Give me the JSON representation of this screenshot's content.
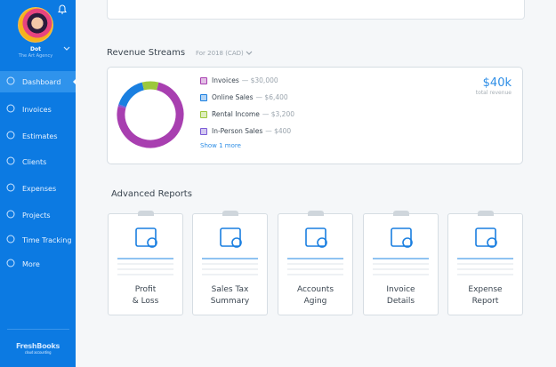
{
  "user": {
    "name": "Dot",
    "org": "The Art Agency"
  },
  "nav": [
    {
      "label": "Dashboard",
      "icon": "sun-icon",
      "active": true
    },
    {
      "label": "Invoices",
      "icon": "invoice-icon"
    },
    {
      "label": "Estimates",
      "icon": "cloud-icon"
    },
    {
      "label": "Clients",
      "icon": "laptop-icon"
    },
    {
      "label": "Expenses",
      "icon": "pizza-icon"
    },
    {
      "label": "Projects",
      "icon": "flask-icon"
    },
    {
      "label": "Time Tracking",
      "icon": "stopwatch-icon"
    },
    {
      "label": "More",
      "icon": "dots-icon"
    }
  ],
  "logo": {
    "name": "FreshBooks",
    "tagline": "cloud accounting"
  },
  "revenue": {
    "title": "Revenue Streams",
    "period": "For 2018 (CAD)",
    "total": "$40k",
    "total_label": "total revenue",
    "show_more": "Show 1 more",
    "streams": [
      {
        "label": "Invoices",
        "amount": "— $30,000",
        "value": 30000,
        "color": "#a83fb0"
      },
      {
        "label": "Online Sales",
        "amount": "— $6,400",
        "value": 6400,
        "color": "#1a7fe0"
      },
      {
        "label": "Rental Income",
        "amount": "— $3,200",
        "value": 3200,
        "color": "#9cc83c"
      },
      {
        "label": "In-Person Sales",
        "amount": "— $400",
        "value": 400,
        "color": "#7b5bd6"
      }
    ]
  },
  "reports": {
    "title": "Advanced Reports",
    "items": [
      {
        "label": "Profit\n& Loss",
        "icon": "profit-loss-icon"
      },
      {
        "label": "Sales Tax\nSummary",
        "icon": "bank-icon"
      },
      {
        "label": "Accounts\nAging",
        "icon": "hourglass-icon"
      },
      {
        "label": "Invoice\nDetails",
        "icon": "invoice-search-icon"
      },
      {
        "label": "Expense\nReport",
        "icon": "pizza-report-icon"
      }
    ]
  }
}
